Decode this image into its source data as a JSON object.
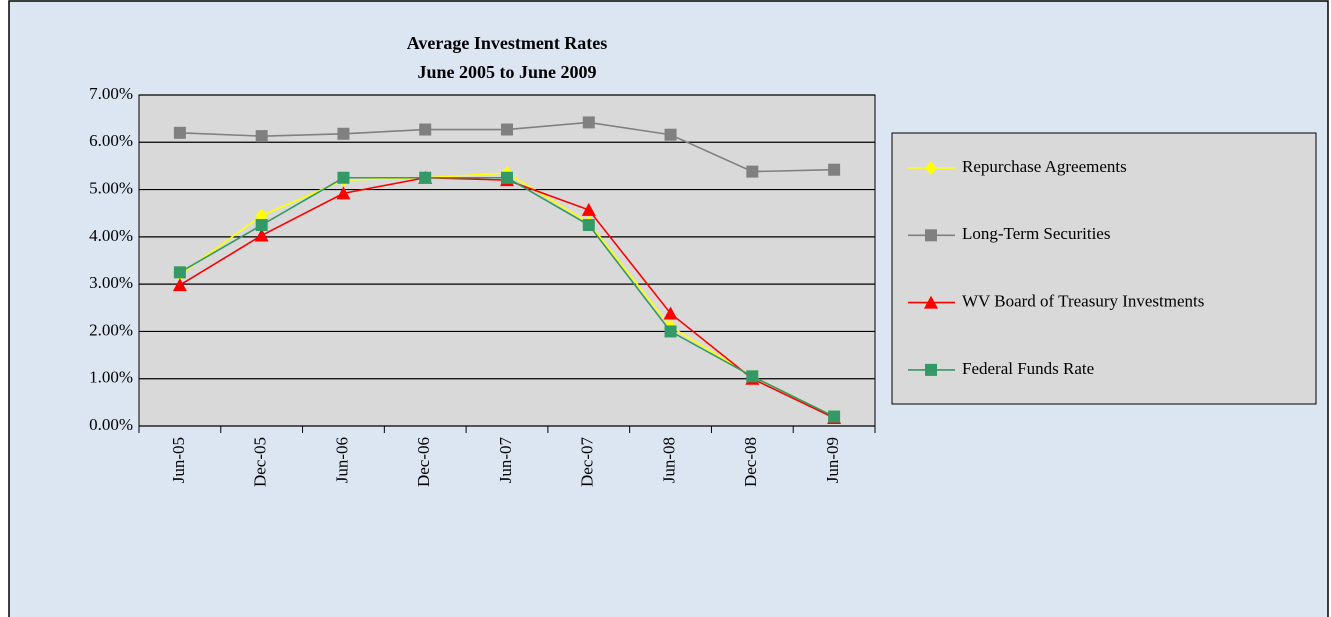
{
  "chart_data": {
    "type": "line",
    "title": "Average Investment Rates",
    "subtitle": "June 2005 to June 2009",
    "categories": [
      "Jun-05",
      "Dec-05",
      "Jun-06",
      "Dec-06",
      "Jun-07",
      "Dec-07",
      "Jun-08",
      "Dec-08",
      "Jun-09"
    ],
    "series": [
      {
        "name": "Repurchase Agreements",
        "color": "#ffff00",
        "marker": "diamond",
        "values": [
          3.2,
          4.45,
          5.2,
          5.25,
          5.35,
          4.3,
          2.1,
          1.05,
          0.2
        ]
      },
      {
        "name": "Long-Term Securities",
        "color": "#808080",
        "marker": "square",
        "values": [
          6.2,
          6.13,
          6.18,
          6.27,
          6.27,
          6.42,
          6.16,
          5.38,
          5.42
        ]
      },
      {
        "name": "WV Board of Treasury Investments",
        "color": "#ff0000",
        "marker": "triangle",
        "values": [
          2.98,
          4.03,
          4.92,
          5.25,
          5.2,
          4.57,
          2.38,
          1.0,
          0.17
        ]
      },
      {
        "name": "Federal Funds Rate",
        "color": "#339966",
        "marker": "square",
        "values": [
          3.25,
          4.25,
          5.25,
          5.25,
          5.25,
          4.25,
          2.0,
          1.05,
          0.2
        ]
      }
    ],
    "ylim": [
      0,
      7
    ],
    "yticks": [
      {
        "value": 0,
        "label": "0.00%"
      },
      {
        "value": 1,
        "label": "1.00%"
      },
      {
        "value": 2,
        "label": "2.00%"
      },
      {
        "value": 3,
        "label": "3.00%"
      },
      {
        "value": 4,
        "label": "4.00%"
      },
      {
        "value": 5,
        "label": "5.00%"
      },
      {
        "value": 6,
        "label": "6.00%"
      },
      {
        "value": 7,
        "label": "7.00%"
      }
    ],
    "grid": true,
    "legend": "right"
  }
}
